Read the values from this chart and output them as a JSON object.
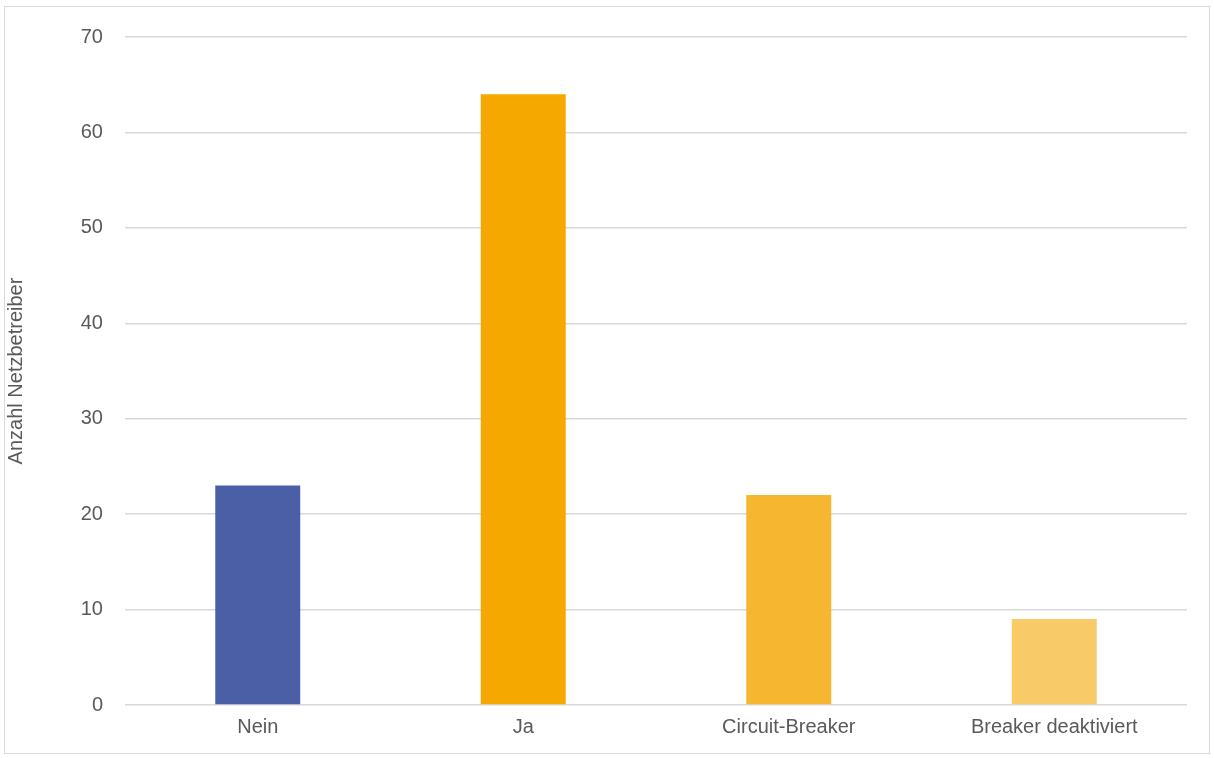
{
  "chart_data": {
    "type": "bar",
    "ylabel": "Anzahl Netzbetreiber",
    "categories": [
      "Nein",
      "Ja",
      "Circuit-Breaker",
      "Breaker deaktiviert"
    ],
    "values": [
      23,
      64,
      22,
      9
    ],
    "colors": [
      "#4a5fa5",
      "#f5a800",
      "#f6b630",
      "#f8ca68"
    ],
    "ylim": [
      0,
      70
    ],
    "yticks": [
      0,
      10,
      20,
      30,
      40,
      50,
      60,
      70
    ],
    "grid": "y",
    "legend": false
  }
}
